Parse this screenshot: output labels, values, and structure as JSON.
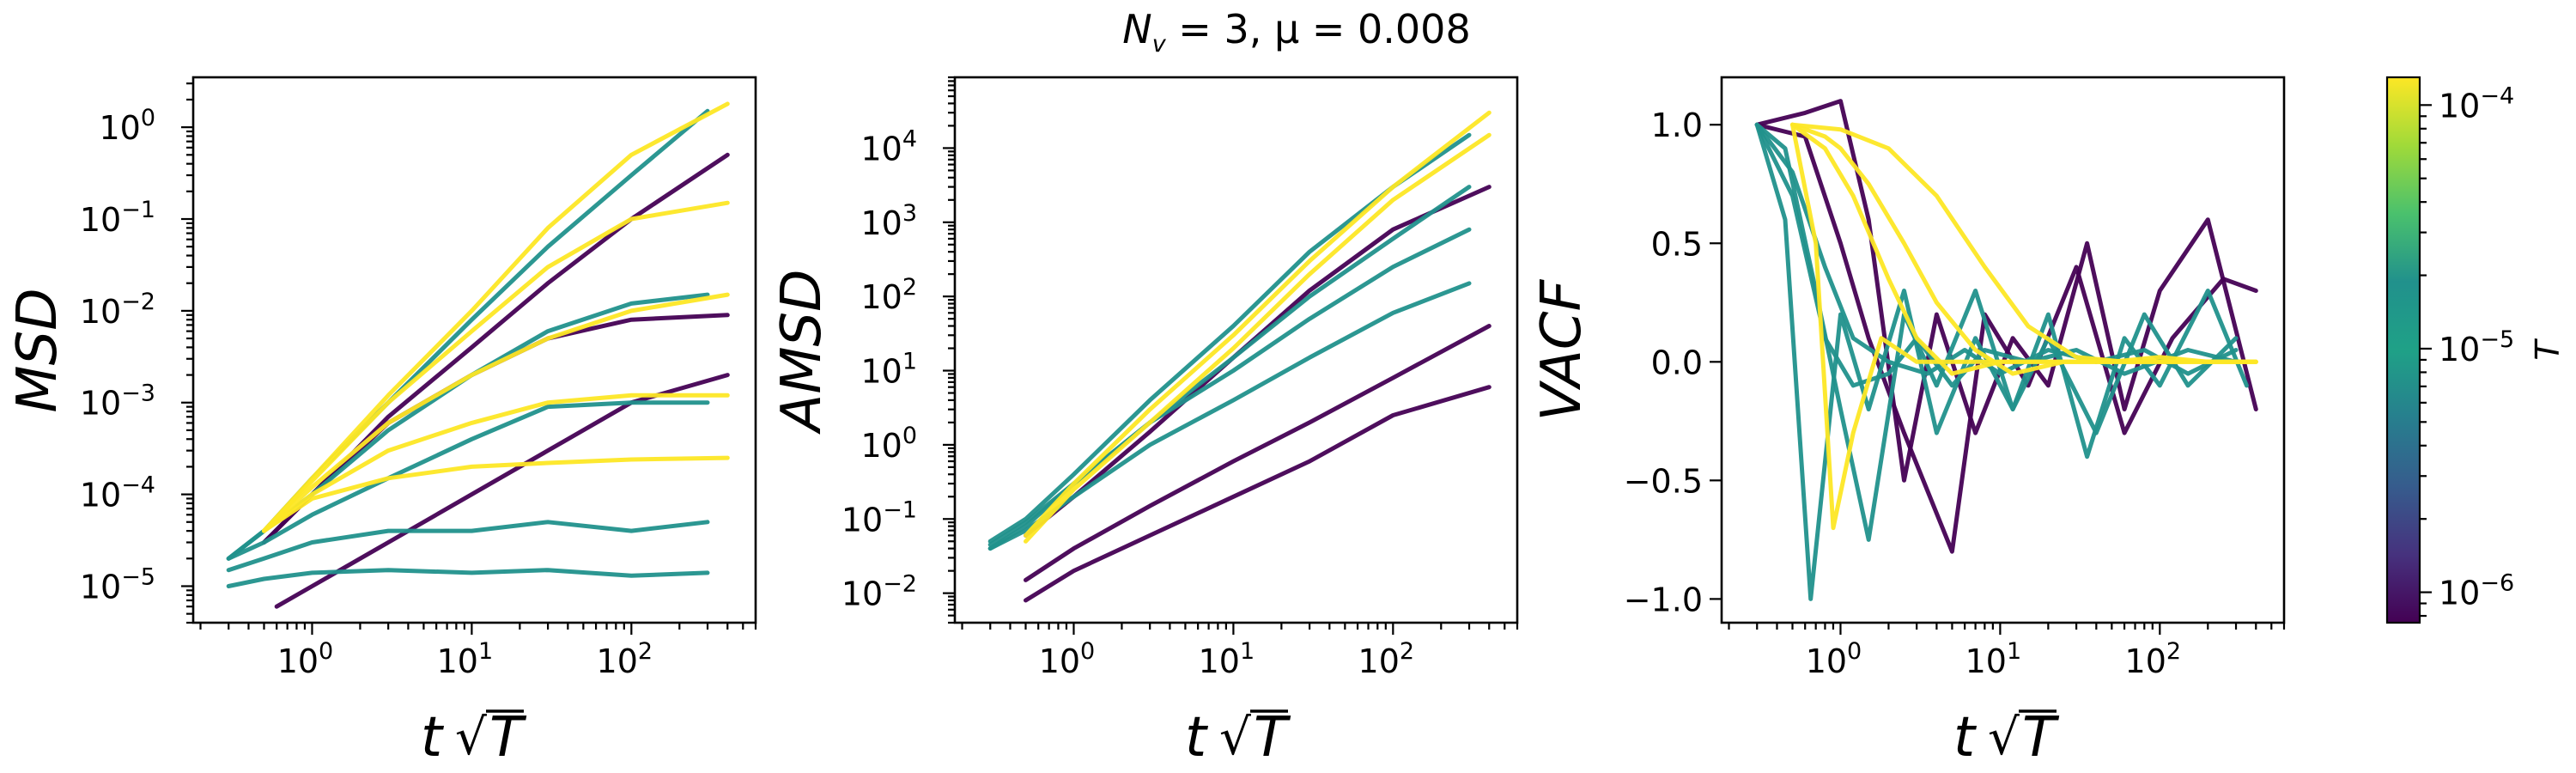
{
  "title": {
    "main": "N",
    "sub": "v",
    "rest": " = 3, μ = 0.008"
  },
  "axis_text": {
    "x": "t√T",
    "t": "t",
    "T": "T",
    "panel_y": [
      "MSD",
      "AMSD",
      "VACF"
    ],
    "colorbar": "T"
  },
  "colors": {
    "low": "#440154",
    "mid": "#21918c",
    "high": "#fde725"
  },
  "chart_data": [
    {
      "type": "line",
      "ylabel": "MSD",
      "xlabel": "t√T",
      "xscale": "log",
      "yscale": "log",
      "xlim": [
        0.18,
        600
      ],
      "ylim": [
        4e-06,
        3.5
      ],
      "xticks": [
        {
          "base": "10",
          "exp": "0",
          "v": 1
        },
        {
          "base": "10",
          "exp": "1",
          "v": 10
        },
        {
          "base": "10",
          "exp": "2",
          "v": 100
        }
      ],
      "yticks": [
        {
          "base": "10",
          "exp": "−5",
          "v": 1e-05
        },
        {
          "base": "10",
          "exp": "−4",
          "v": 0.0001
        },
        {
          "base": "10",
          "exp": "−3",
          "v": 0.001
        },
        {
          "base": "10",
          "exp": "−2",
          "v": 0.01
        },
        {
          "base": "10",
          "exp": "−1",
          "v": 0.1
        },
        {
          "base": "10",
          "exp": "0",
          "v": 1
        }
      ],
      "series": [
        {
          "color": "#440154",
          "x": [
            0.6,
            1,
            3,
            10,
            30,
            100,
            400
          ],
          "y": [
            6e-06,
            1e-05,
            3e-05,
            0.0001,
            0.0003,
            0.001,
            0.002
          ]
        },
        {
          "color": "#440154",
          "x": [
            0.5,
            1,
            3,
            10,
            30,
            100,
            400
          ],
          "y": [
            3e-05,
            0.0001,
            0.0007,
            0.004,
            0.02,
            0.1,
            0.5
          ]
        },
        {
          "color": "#440154",
          "x": [
            0.5,
            1,
            3,
            10,
            30,
            100,
            400
          ],
          "y": [
            3e-05,
            0.0001,
            0.0006,
            0.002,
            0.005,
            0.008,
            0.009
          ]
        },
        {
          "color": "#21918c",
          "x": [
            0.3,
            0.5,
            1,
            3,
            10,
            30,
            100,
            300
          ],
          "y": [
            2e-05,
            4e-05,
            0.00015,
            0.001,
            0.008,
            0.05,
            0.3,
            1.5
          ]
        },
        {
          "color": "#21918c",
          "x": [
            0.3,
            0.5,
            1,
            3,
            10,
            30,
            100,
            300
          ],
          "y": [
            1.5e-05,
            2e-05,
            3e-05,
            4e-05,
            4e-05,
            5e-05,
            4e-05,
            5e-05
          ]
        },
        {
          "color": "#21918c",
          "x": [
            0.3,
            0.5,
            1,
            3,
            10,
            30,
            100,
            300
          ],
          "y": [
            1e-05,
            1.2e-05,
            1.4e-05,
            1.5e-05,
            1.4e-05,
            1.5e-05,
            1.3e-05,
            1.4e-05
          ]
        },
        {
          "color": "#21918c",
          "x": [
            0.3,
            0.5,
            1,
            3,
            10,
            30,
            100,
            300
          ],
          "y": [
            2e-05,
            3e-05,
            6e-05,
            0.00015,
            0.0004,
            0.0009,
            0.001,
            0.001
          ]
        },
        {
          "color": "#21918c",
          "x": [
            0.3,
            0.5,
            1,
            3,
            10,
            30,
            100,
            300
          ],
          "y": [
            2e-05,
            4e-05,
            0.0001,
            0.0005,
            0.002,
            0.006,
            0.012,
            0.015
          ]
        },
        {
          "color": "#fde725",
          "x": [
            0.5,
            1,
            3,
            10,
            30,
            100,
            400
          ],
          "y": [
            4e-05,
            0.00015,
            0.0012,
            0.01,
            0.08,
            0.5,
            1.8
          ]
        },
        {
          "color": "#fde725",
          "x": [
            0.5,
            1,
            3,
            10,
            30,
            100,
            400
          ],
          "y": [
            4e-05,
            0.00012,
            0.0006,
            0.002,
            0.005,
            0.01,
            0.015
          ]
        },
        {
          "color": "#fde725",
          "x": [
            0.5,
            1,
            3,
            10,
            30,
            100,
            400
          ],
          "y": [
            4e-05,
            0.0001,
            0.0003,
            0.0006,
            0.001,
            0.0012,
            0.0012
          ]
        },
        {
          "color": "#fde725",
          "x": [
            0.5,
            1,
            3,
            10,
            30,
            100,
            400
          ],
          "y": [
            4e-05,
            9e-05,
            0.00015,
            0.0002,
            0.00022,
            0.00024,
            0.00025
          ]
        },
        {
          "color": "#fde725",
          "x": [
            0.5,
            1,
            3,
            10,
            30,
            100,
            400
          ],
          "y": [
            4e-05,
            0.00014,
            0.001,
            0.006,
            0.03,
            0.1,
            0.15
          ]
        }
      ]
    },
    {
      "type": "line",
      "ylabel": "AMSD",
      "xlabel": "t√T",
      "xscale": "log",
      "yscale": "log",
      "xlim": [
        0.18,
        600
      ],
      "ylim": [
        0.004,
        90000
      ],
      "xticks": [
        {
          "base": "10",
          "exp": "0",
          "v": 1
        },
        {
          "base": "10",
          "exp": "1",
          "v": 10
        },
        {
          "base": "10",
          "exp": "2",
          "v": 100
        }
      ],
      "yticks": [
        {
          "base": "10",
          "exp": "−2",
          "v": 0.01
        },
        {
          "base": "10",
          "exp": "−1",
          "v": 0.1
        },
        {
          "base": "10",
          "exp": "0",
          "v": 1
        },
        {
          "base": "10",
          "exp": "1",
          "v": 10
        },
        {
          "base": "10",
          "exp": "2",
          "v": 100
        },
        {
          "base": "10",
          "exp": "3",
          "v": 1000
        },
        {
          "base": "10",
          "exp": "4",
          "v": 10000
        }
      ],
      "series": [
        {
          "color": "#440154",
          "x": [
            0.5,
            1,
            3,
            10,
            30,
            100,
            400
          ],
          "y": [
            0.008,
            0.02,
            0.06,
            0.2,
            0.6,
            2.5,
            6
          ]
        },
        {
          "color": "#440154",
          "x": [
            0.5,
            1,
            3,
            10,
            30,
            100,
            400
          ],
          "y": [
            0.015,
            0.04,
            0.15,
            0.6,
            2,
            8,
            40
          ]
        },
        {
          "color": "#440154",
          "x": [
            0.5,
            1,
            3,
            10,
            30,
            100,
            400
          ],
          "y": [
            0.06,
            0.2,
            1.5,
            15,
            120,
            800,
            3000
          ]
        },
        {
          "color": "#21918c",
          "x": [
            0.3,
            0.5,
            1,
            3,
            10,
            30,
            100,
            300
          ],
          "y": [
            0.04,
            0.08,
            0.3,
            2,
            15,
            100,
            600,
            3000
          ]
        },
        {
          "color": "#21918c",
          "x": [
            0.3,
            0.5,
            1,
            3,
            10,
            30,
            100,
            300
          ],
          "y": [
            0.04,
            0.07,
            0.2,
            1,
            4,
            15,
            60,
            150
          ]
        },
        {
          "color": "#21918c",
          "x": [
            0.3,
            0.5,
            1,
            3,
            10,
            30,
            100,
            300
          ],
          "y": [
            0.05,
            0.1,
            0.4,
            4,
            40,
            400,
            3000,
            15000
          ]
        },
        {
          "color": "#21918c",
          "x": [
            0.3,
            0.5,
            1,
            3,
            10,
            30,
            100,
            300
          ],
          "y": [
            0.045,
            0.09,
            0.3,
            2,
            10,
            50,
            250,
            800
          ]
        },
        {
          "color": "#fde725",
          "x": [
            0.5,
            1,
            3,
            10,
            30,
            100,
            400
          ],
          "y": [
            0.06,
            0.3,
            3,
            30,
            300,
            3000,
            30000
          ]
        },
        {
          "color": "#fde725",
          "x": [
            0.5,
            1,
            3,
            10,
            30,
            100,
            400
          ],
          "y": [
            0.05,
            0.25,
            2,
            20,
            200,
            2000,
            15000
          ]
        }
      ]
    },
    {
      "type": "line",
      "ylabel": "VACF",
      "xlabel": "t√T",
      "xscale": "log",
      "yscale": "linear",
      "xlim": [
        0.18,
        600
      ],
      "ylim": [
        -1.1,
        1.2
      ],
      "xticks": [
        {
          "base": "10",
          "exp": "0",
          "v": 1
        },
        {
          "base": "10",
          "exp": "1",
          "v": 10
        },
        {
          "base": "10",
          "exp": "2",
          "v": 100
        }
      ],
      "yticks": [
        {
          "text": "−1.0",
          "v": -1
        },
        {
          "text": "−0.5",
          "v": -0.5
        },
        {
          "text": "0.0",
          "v": 0
        },
        {
          "text": "0.5",
          "v": 0.5
        },
        {
          "text": "1.0",
          "v": 1
        }
      ],
      "series": [
        {
          "color": "#440154",
          "x": [
            0.3,
            0.6,
            1,
            1.5,
            2.5,
            4,
            7,
            12,
            20,
            35,
            60,
            100,
            200,
            400
          ],
          "y": [
            1,
            1.05,
            1.1,
            0.6,
            -0.5,
            0.2,
            -0.3,
            0.1,
            -0.1,
            0.5,
            -0.2,
            0.3,
            0.6,
            -0.2
          ]
        },
        {
          "color": "#440154",
          "x": [
            0.3,
            0.6,
            1,
            1.5,
            2.5,
            5,
            8,
            15,
            30,
            60,
            120,
            250,
            400
          ],
          "y": [
            1,
            0.95,
            0.5,
            0.1,
            -0.3,
            -0.8,
            0.2,
            -0.1,
            0.4,
            -0.3,
            0.1,
            0.35,
            0.3
          ]
        },
        {
          "color": "#21918c",
          "x": [
            0.3,
            0.45,
            0.65,
            1,
            1.5,
            2.5,
            4,
            7,
            12,
            20,
            35,
            60,
            100,
            200,
            350
          ],
          "y": [
            1,
            0.6,
            -1,
            0.2,
            -0.2,
            0.3,
            -0.3,
            0.1,
            -0.2,
            0.2,
            -0.4,
            0.1,
            -0.1,
            0.3,
            -0.1
          ]
        },
        {
          "color": "#21918c",
          "x": [
            0.3,
            0.45,
            0.7,
            1,
            1.5,
            2.5,
            4,
            7,
            12,
            20,
            40,
            80,
            150,
            300
          ],
          "y": [
            1,
            0.9,
            0.3,
            -0.2,
            -0.75,
            0.2,
            -0.1,
            0.3,
            -0.2,
            0.1,
            -0.3,
            0.2,
            -0.1,
            0.1
          ]
        },
        {
          "color": "#21918c",
          "x": [
            0.3,
            0.5,
            0.8,
            1.2,
            2,
            3.5,
            6,
            10,
            20,
            40,
            80,
            150,
            300
          ],
          "y": [
            1,
            0.8,
            0.4,
            0.1,
            0,
            -0.05,
            0.05,
            -0.05,
            0.05,
            0,
            0.05,
            -0.05,
            0.05
          ]
        },
        {
          "color": "#21918c",
          "x": [
            0.3,
            0.5,
            0.8,
            1.2,
            2,
            3,
            5,
            8,
            15,
            30,
            60,
            150,
            300
          ],
          "y": [
            1,
            0.7,
            0.1,
            -0.1,
            -0.05,
            0.1,
            -0.1,
            0.05,
            0,
            0.05,
            -0.05,
            0.05,
            0
          ]
        },
        {
          "color": "#fde725",
          "x": [
            0.5,
            0.8,
            1,
            1.5,
            2.5,
            4,
            7,
            12,
            25,
            50,
            100,
            200,
            400
          ],
          "y": [
            1,
            0.95,
            0.9,
            0.75,
            0.5,
            0.25,
            0.05,
            -0.05,
            0,
            0,
            0.02,
            0,
            0
          ]
        },
        {
          "color": "#fde725",
          "x": [
            0.5,
            0.8,
            1.2,
            2,
            3,
            5,
            10,
            20,
            40,
            80,
            160,
            400
          ],
          "y": [
            1,
            0.9,
            0.7,
            0.35,
            0.1,
            -0.05,
            0,
            0,
            0,
            0,
            0,
            0
          ]
        },
        {
          "color": "#fde725",
          "x": [
            0.5,
            0.7,
            0.9,
            1.2,
            1.8,
            3,
            5,
            10,
            20,
            40,
            80,
            200,
            400
          ],
          "y": [
            1,
            0.5,
            -0.7,
            -0.3,
            0.1,
            0,
            0,
            0,
            0,
            0,
            0,
            0,
            0
          ]
        },
        {
          "color": "#fde725",
          "x": [
            0.5,
            1,
            2,
            4,
            8,
            15,
            30,
            60,
            120,
            250,
            400
          ],
          "y": [
            1,
            0.98,
            0.9,
            0.7,
            0.4,
            0.15,
            0.02,
            0,
            0,
            0,
            0
          ]
        }
      ]
    }
  ],
  "colorbar": {
    "label": "T",
    "ticks": [
      {
        "base": "10",
        "exp": "−4",
        "v": 0.0001
      },
      {
        "base": "10",
        "exp": "−5",
        "v": 1e-05
      },
      {
        "base": "10",
        "exp": "−6",
        "v": 1e-06
      }
    ],
    "range": [
      7.5e-07,
      0.00013
    ]
  }
}
